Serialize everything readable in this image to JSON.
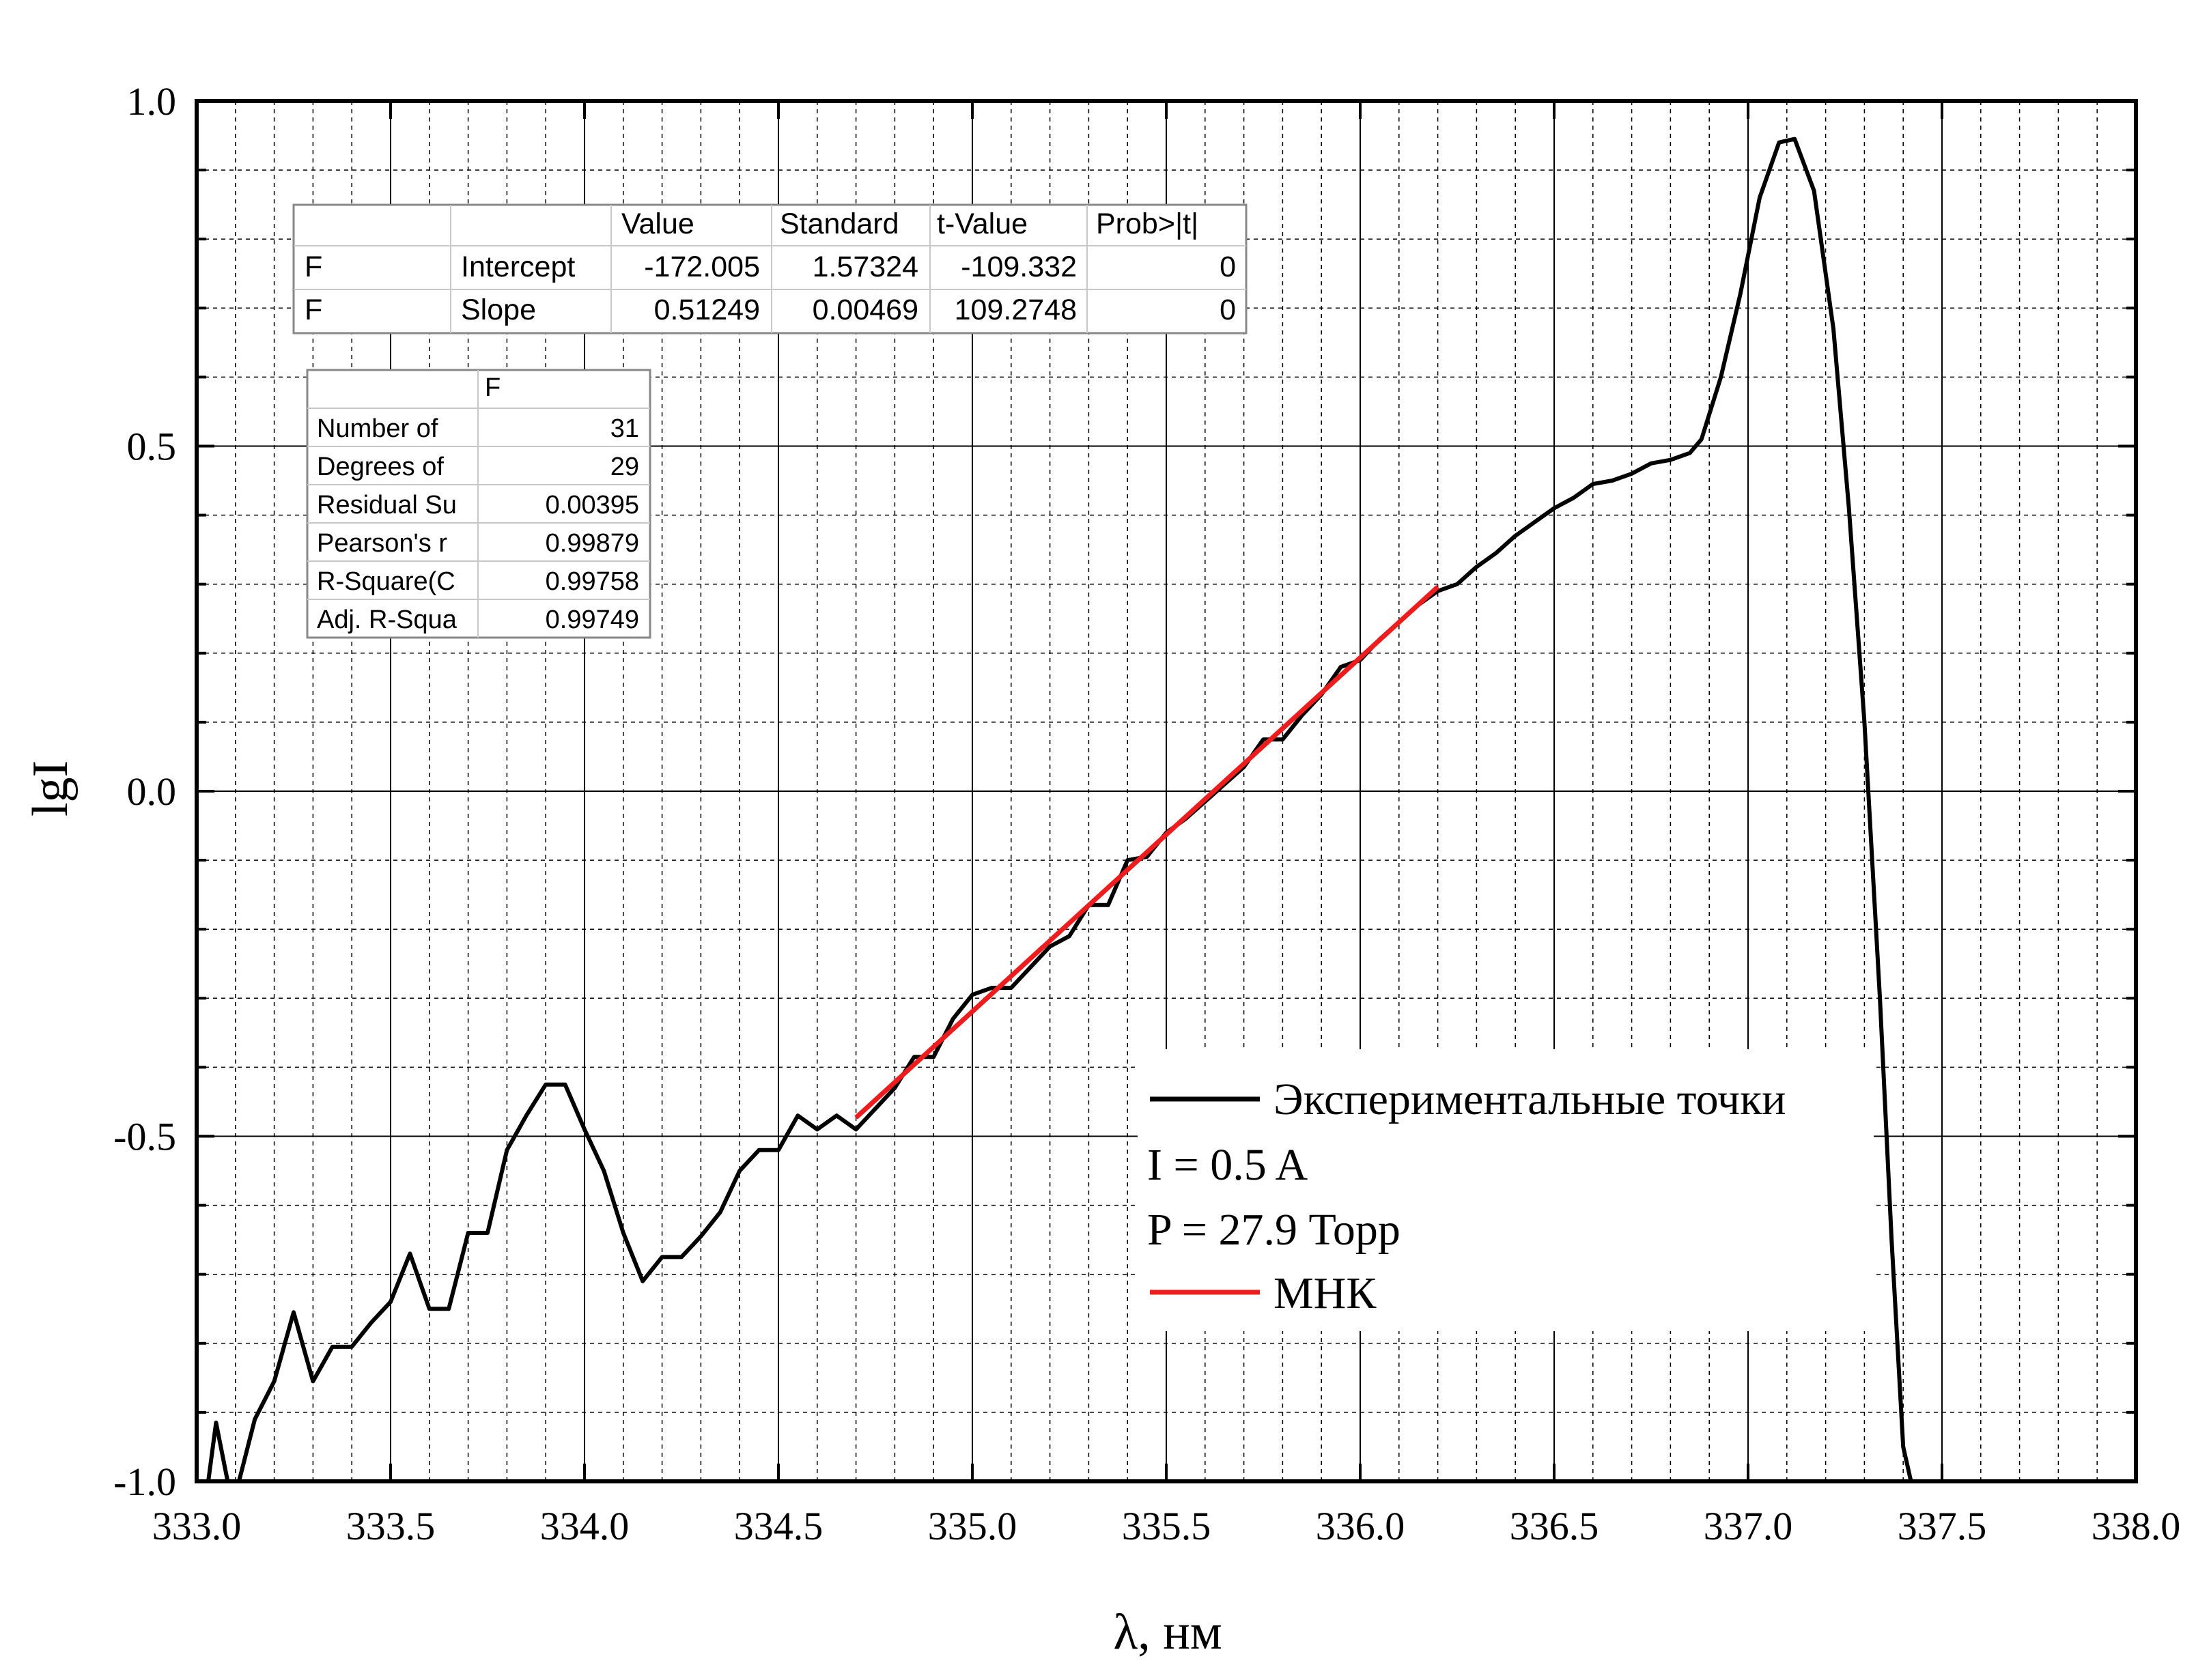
{
  "chart_data": {
    "type": "line",
    "xlabel": "λ, нм",
    "ylabel": "lgI",
    "xlim": [
      333.0,
      338.0
    ],
    "ylim": [
      -1.0,
      1.0
    ],
    "x_ticks": [
      "333.0",
      "333.5",
      "334.0",
      "334.5",
      "335.0",
      "335.5",
      "336.0",
      "336.5",
      "337.0",
      "337.5",
      "338.0"
    ],
    "y_ticks": [
      "1.0",
      "0.5",
      "0.0",
      "-0.5",
      "-1.0"
    ],
    "grid": true,
    "legend_position": "bottom-right",
    "series": [
      {
        "name": "Экспериментальные точки",
        "color": "#000000",
        "points": [
          [
            333.03,
            -1.0
          ],
          [
            333.05,
            -0.915
          ],
          [
            333.08,
            -1.0
          ],
          [
            333.1,
            -1.02
          ],
          [
            333.15,
            -0.91
          ],
          [
            333.2,
            -0.855
          ],
          [
            333.25,
            -0.755
          ],
          [
            333.3,
            -0.855
          ],
          [
            333.35,
            -0.805
          ],
          [
            333.4,
            -0.805
          ],
          [
            333.45,
            -0.77
          ],
          [
            333.5,
            -0.74
          ],
          [
            333.55,
            -0.67
          ],
          [
            333.6,
            -0.75
          ],
          [
            333.65,
            -0.75
          ],
          [
            333.7,
            -0.64
          ],
          [
            333.75,
            -0.64
          ],
          [
            333.8,
            -0.52
          ],
          [
            333.85,
            -0.47
          ],
          [
            333.9,
            -0.425
          ],
          [
            333.95,
            -0.425
          ],
          [
            334.0,
            -0.49
          ],
          [
            334.05,
            -0.55
          ],
          [
            334.1,
            -0.64
          ],
          [
            334.15,
            -0.71
          ],
          [
            334.2,
            -0.675
          ],
          [
            334.25,
            -0.675
          ],
          [
            334.3,
            -0.645
          ],
          [
            334.35,
            -0.61
          ],
          [
            334.4,
            -0.55
          ],
          [
            334.45,
            -0.52
          ],
          [
            334.5,
            -0.52
          ],
          [
            334.55,
            -0.47
          ],
          [
            334.6,
            -0.49
          ],
          [
            334.65,
            -0.47
          ],
          [
            334.7,
            -0.49
          ],
          [
            334.75,
            -0.46
          ],
          [
            334.8,
            -0.43
          ],
          [
            334.85,
            -0.385
          ],
          [
            334.9,
            -0.385
          ],
          [
            334.95,
            -0.33
          ],
          [
            335.0,
            -0.295
          ],
          [
            335.05,
            -0.285
          ],
          [
            335.1,
            -0.285
          ],
          [
            335.15,
            -0.255
          ],
          [
            335.2,
            -0.225
          ],
          [
            335.25,
            -0.21
          ],
          [
            335.3,
            -0.165
          ],
          [
            335.35,
            -0.165
          ],
          [
            335.4,
            -0.1
          ],
          [
            335.45,
            -0.095
          ],
          [
            335.5,
            -0.06
          ],
          [
            335.55,
            -0.04
          ],
          [
            335.6,
            -0.015
          ],
          [
            335.65,
            0.01
          ],
          [
            335.7,
            0.035
          ],
          [
            335.75,
            0.075
          ],
          [
            335.8,
            0.075
          ],
          [
            335.85,
            0.11
          ],
          [
            335.9,
            0.14
          ],
          [
            335.95,
            0.18
          ],
          [
            336.0,
            0.19
          ],
          [
            336.05,
            0.22
          ],
          [
            336.1,
            0.245
          ],
          [
            336.15,
            0.27
          ],
          [
            336.2,
            0.29
          ],
          [
            336.25,
            0.3
          ],
          [
            336.3,
            0.325
          ],
          [
            336.35,
            0.345
          ],
          [
            336.4,
            0.37
          ],
          [
            336.45,
            0.39
          ],
          [
            336.5,
            0.41
          ],
          [
            336.55,
            0.425
          ],
          [
            336.6,
            0.445
          ],
          [
            336.65,
            0.45
          ],
          [
            336.7,
            0.46
          ],
          [
            336.75,
            0.475
          ],
          [
            336.8,
            0.48
          ],
          [
            336.85,
            0.49
          ],
          [
            336.88,
            0.51
          ],
          [
            336.93,
            0.6
          ],
          [
            336.98,
            0.72
          ],
          [
            337.03,
            0.86
          ],
          [
            337.08,
            0.94
          ],
          [
            337.12,
            0.945
          ],
          [
            337.17,
            0.87
          ],
          [
            337.22,
            0.67
          ],
          [
            337.26,
            0.41
          ],
          [
            337.3,
            0.1
          ],
          [
            337.34,
            -0.3
          ],
          [
            337.37,
            -0.65
          ],
          [
            337.4,
            -0.95
          ],
          [
            337.42,
            -1.0
          ]
        ]
      },
      {
        "name": "МНК",
        "color": "#ee1c1c",
        "points": [
          [
            334.7,
            -0.473
          ],
          [
            336.2,
            0.296
          ]
        ]
      }
    ],
    "legend_text": [
      "I = 0.5 A",
      "P = 27.9 Торр"
    ]
  },
  "fit_table": {
    "headers": [
      "",
      "",
      "Value",
      "Standard",
      "t-Value",
      "Prob>|t|"
    ],
    "rows": [
      [
        "F",
        "Intercept",
        "-172.005",
        "1.57324",
        "-109.332",
        "0"
      ],
      [
        "F",
        "Slope",
        "0.51249",
        "0.00469",
        "109.2748",
        "0"
      ]
    ]
  },
  "stats_table": {
    "header": "F",
    "rows": [
      [
        "Number of",
        "31"
      ],
      [
        "Degrees of",
        "29"
      ],
      [
        "Residual Su",
        "0.00395"
      ],
      [
        "Pearson's r",
        "0.99879"
      ],
      [
        "R-Square(C",
        "0.99758"
      ],
      [
        "Adj. R-Squa",
        "0.99749"
      ]
    ]
  }
}
